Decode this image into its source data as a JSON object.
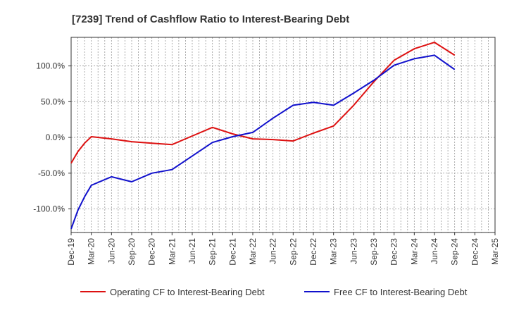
{
  "chart_data": {
    "type": "line",
    "title": "[7239]  Trend of Cashflow Ratio to Interest-Bearing Debt",
    "xlabel": "",
    "ylabel": "",
    "x": [
      "Dec-19",
      "Jan-20",
      "Feb-20",
      "Mar-20",
      "Apr-20",
      "May-20",
      "Jun-20",
      "Jul-20",
      "Aug-20",
      "Sep-20",
      "Oct-20",
      "Nov-20",
      "Dec-20",
      "Jan-21",
      "Feb-21",
      "Mar-21",
      "Apr-21",
      "May-21",
      "Jun-21",
      "Jul-21",
      "Aug-21",
      "Sep-21",
      "Oct-21",
      "Nov-21",
      "Dec-21",
      "Jan-22",
      "Feb-22",
      "Mar-22",
      "Apr-22",
      "May-22",
      "Jun-22",
      "Jul-22",
      "Aug-22",
      "Sep-22",
      "Oct-22",
      "Nov-22",
      "Dec-22",
      "Jan-23",
      "Feb-23",
      "Mar-23",
      "Apr-23",
      "May-23",
      "Jun-23",
      "Jul-23",
      "Aug-23",
      "Sep-23",
      "Oct-23",
      "Nov-23",
      "Dec-23",
      "Jan-24",
      "Feb-24",
      "Mar-24",
      "Apr-24",
      "May-24",
      "Jun-24",
      "Jul-24",
      "Aug-24",
      "Sep-24",
      "Oct-24",
      "Nov-24",
      "Dec-24",
      "Jan-25",
      "Feb-25",
      "Mar-25"
    ],
    "x_tick_labels": [
      "Dec-19",
      "Mar-20",
      "Jun-20",
      "Sep-20",
      "Dec-20",
      "Mar-21",
      "Jun-21",
      "Sep-21",
      "Dec-21",
      "Mar-22",
      "Jun-22",
      "Sep-22",
      "Dec-22",
      "Mar-23",
      "Jun-23",
      "Sep-23",
      "Dec-23",
      "Mar-24",
      "Jun-24",
      "Sep-24",
      "Dec-24",
      "Mar-25"
    ],
    "y_ticks": [
      -100,
      -50,
      0,
      50,
      100
    ],
    "y_tick_labels": [
      "-100.0%",
      "-50.0%",
      "0.0%",
      "50.0%",
      "100.0%"
    ],
    "ylim": [
      -133,
      140
    ],
    "grid": true,
    "legend_position": "bottom",
    "series": [
      {
        "name": "Operating CF to Interest-Bearing Debt",
        "color": "#dd1111",
        "points": [
          [
            "Dec-19",
            -36
          ],
          [
            "Jan-20",
            -20
          ],
          [
            "Feb-20",
            -8
          ],
          [
            "Mar-20",
            1
          ],
          [
            "Jun-20",
            -2
          ],
          [
            "Sep-20",
            -6
          ],
          [
            "Dec-20",
            -8
          ],
          [
            "Mar-21",
            -10
          ],
          [
            "Jun-21",
            2
          ],
          [
            "Sep-21",
            14
          ],
          [
            "Dec-21",
            5
          ],
          [
            "Mar-22",
            -2
          ],
          [
            "Jun-22",
            -3
          ],
          [
            "Sep-22",
            -5
          ],
          [
            "Dec-22",
            6
          ],
          [
            "Mar-23",
            16
          ],
          [
            "Jun-23",
            45
          ],
          [
            "Sep-23",
            78
          ],
          [
            "Dec-23",
            108
          ],
          [
            "Mar-24",
            124
          ],
          [
            "Jun-24",
            133
          ],
          [
            "Sep-24",
            115
          ]
        ]
      },
      {
        "name": "Free CF to Interest-Bearing Debt",
        "color": "#1111cc",
        "points": [
          [
            "Dec-19",
            -128
          ],
          [
            "Jan-20",
            -102
          ],
          [
            "Feb-20",
            -83
          ],
          [
            "Mar-20",
            -67
          ],
          [
            "Jun-20",
            -55
          ],
          [
            "Sep-20",
            -62
          ],
          [
            "Dec-20",
            -50
          ],
          [
            "Mar-21",
            -45
          ],
          [
            "Jun-21",
            -26
          ],
          [
            "Sep-21",
            -7
          ],
          [
            "Dec-21",
            1
          ],
          [
            "Mar-22",
            7
          ],
          [
            "Jun-22",
            27
          ],
          [
            "Sep-22",
            45
          ],
          [
            "Dec-22",
            49
          ],
          [
            "Mar-23",
            45
          ],
          [
            "Jun-23",
            62
          ],
          [
            "Sep-23",
            80
          ],
          [
            "Dec-23",
            101
          ],
          [
            "Mar-24",
            110
          ],
          [
            "Jun-24",
            115
          ],
          [
            "Sep-24",
            95
          ]
        ]
      }
    ]
  }
}
